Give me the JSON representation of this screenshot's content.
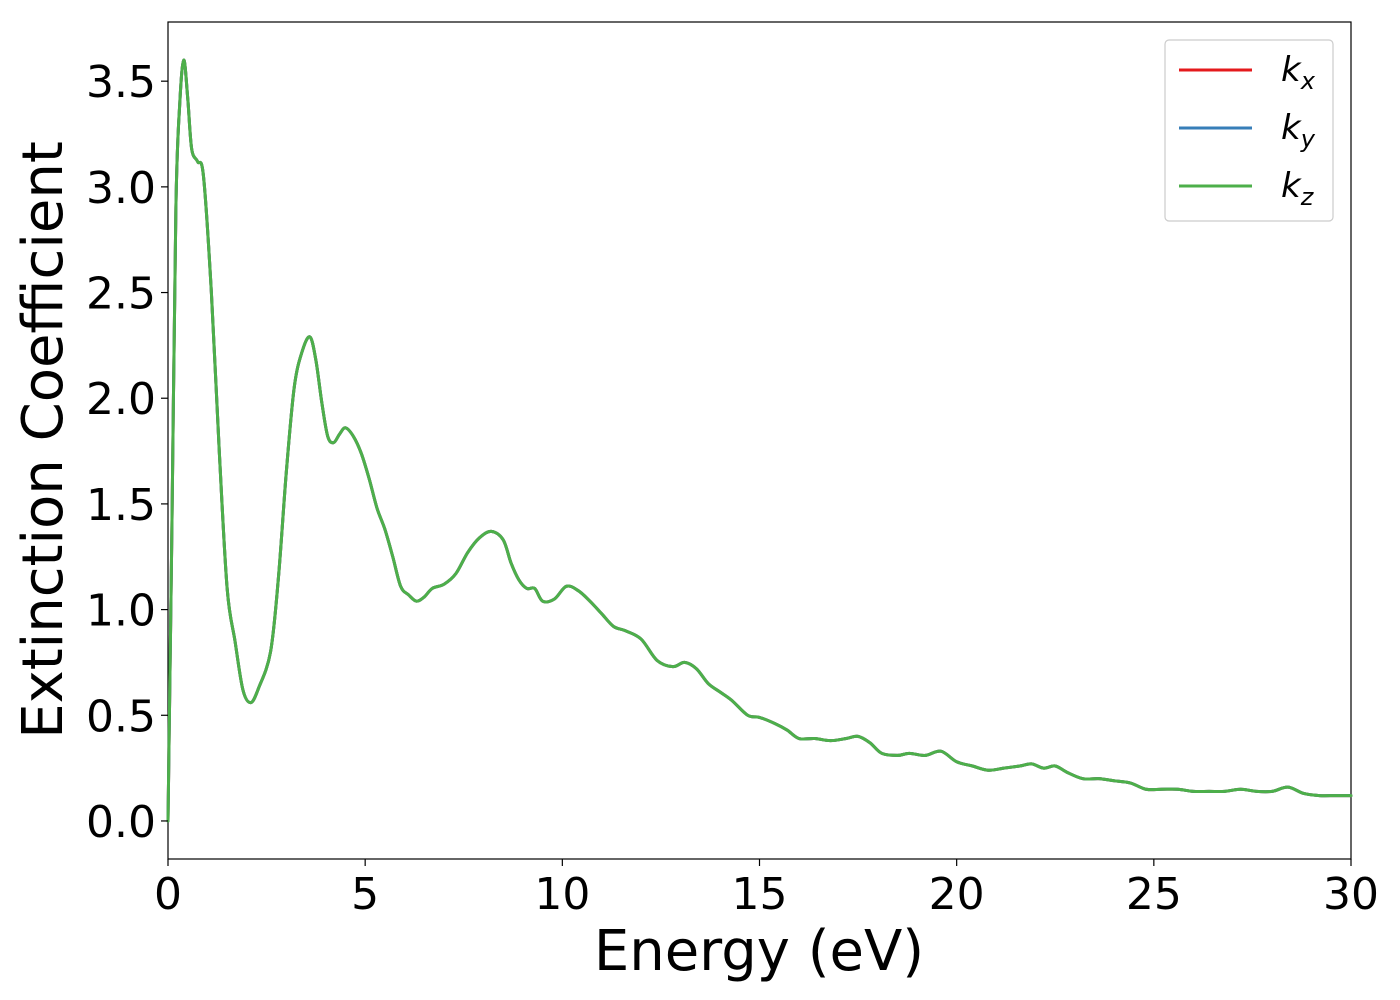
{
  "chart_data": {
    "type": "line",
    "xlabel": "Energy (eV)",
    "ylabel": "Extinction Coefficient",
    "xlim": [
      0,
      30
    ],
    "ylim": [
      -0.18,
      3.78
    ],
    "xticks": [
      0,
      5,
      10,
      15,
      20,
      25,
      30
    ],
    "xtick_labels": [
      "0",
      "5",
      "10",
      "15",
      "20",
      "25",
      "30"
    ],
    "yticks": [
      0.0,
      0.5,
      1.0,
      1.5,
      2.0,
      2.5,
      3.0,
      3.5
    ],
    "ytick_labels": [
      "0.0",
      "0.5",
      "1.0",
      "1.5",
      "2.0",
      "2.5",
      "3.0",
      "3.5"
    ],
    "grid": false,
    "legend_position": "top-right",
    "x": [
      0,
      0.1,
      0.2,
      0.3,
      0.4,
      0.5,
      0.6,
      0.75,
      0.9,
      1.1,
      1.3,
      1.5,
      1.7,
      1.9,
      2.1,
      2.3,
      2.6,
      2.8,
      3.0,
      3.2,
      3.4,
      3.6,
      3.75,
      3.9,
      4.05,
      4.2,
      4.35,
      4.5,
      4.7,
      4.9,
      5.1,
      5.3,
      5.5,
      5.7,
      5.9,
      6.1,
      6.3,
      6.5,
      6.7,
      7.0,
      7.3,
      7.6,
      7.9,
      8.2,
      8.5,
      8.7,
      8.9,
      9.1,
      9.3,
      9.5,
      9.8,
      10.1,
      10.4,
      10.7,
      11.0,
      11.3,
      11.6,
      12.0,
      12.4,
      12.8,
      13.1,
      13.4,
      13.7,
      14.0,
      14.3,
      14.7,
      15.0,
      15.4,
      15.7,
      16.0,
      16.4,
      16.8,
      17.2,
      17.5,
      17.8,
      18.1,
      18.5,
      18.8,
      19.2,
      19.6,
      20.0,
      20.4,
      20.8,
      21.2,
      21.6,
      21.9,
      22.2,
      22.5,
      22.8,
      23.2,
      23.6,
      24.0,
      24.4,
      24.8,
      25.2,
      25.6,
      26.0,
      26.4,
      26.8,
      27.2,
      27.6,
      28.0,
      28.4,
      28.8,
      29.2,
      29.6,
      30.0
    ],
    "series": [
      {
        "name": "k_x",
        "color": "#e41a1c",
        "values": [
          0.0,
          1.4,
          2.9,
          3.4,
          3.6,
          3.42,
          3.18,
          3.12,
          3.05,
          2.5,
          1.75,
          1.1,
          0.85,
          0.62,
          0.56,
          0.63,
          0.8,
          1.15,
          1.65,
          2.05,
          2.22,
          2.29,
          2.18,
          1.98,
          1.82,
          1.79,
          1.83,
          1.86,
          1.82,
          1.74,
          1.62,
          1.48,
          1.38,
          1.25,
          1.11,
          1.07,
          1.04,
          1.06,
          1.1,
          1.12,
          1.17,
          1.27,
          1.34,
          1.37,
          1.33,
          1.22,
          1.14,
          1.1,
          1.1,
          1.04,
          1.05,
          1.11,
          1.09,
          1.04,
          0.98,
          0.92,
          0.9,
          0.86,
          0.76,
          0.73,
          0.75,
          0.72,
          0.65,
          0.61,
          0.57,
          0.5,
          0.49,
          0.46,
          0.43,
          0.39,
          0.39,
          0.38,
          0.39,
          0.4,
          0.37,
          0.32,
          0.31,
          0.32,
          0.31,
          0.33,
          0.28,
          0.26,
          0.24,
          0.25,
          0.26,
          0.27,
          0.25,
          0.26,
          0.23,
          0.2,
          0.2,
          0.19,
          0.18,
          0.15,
          0.15,
          0.15,
          0.14,
          0.14,
          0.14,
          0.15,
          0.14,
          0.14,
          0.16,
          0.13,
          0.12,
          0.12,
          0.12
        ]
      },
      {
        "name": "k_y",
        "color": "#377eb8",
        "values": [
          0.0,
          1.4,
          2.9,
          3.4,
          3.6,
          3.42,
          3.18,
          3.12,
          3.05,
          2.5,
          1.75,
          1.1,
          0.85,
          0.62,
          0.56,
          0.63,
          0.8,
          1.15,
          1.65,
          2.05,
          2.22,
          2.29,
          2.18,
          1.98,
          1.82,
          1.79,
          1.83,
          1.86,
          1.82,
          1.74,
          1.62,
          1.48,
          1.38,
          1.25,
          1.11,
          1.07,
          1.04,
          1.06,
          1.1,
          1.12,
          1.17,
          1.27,
          1.34,
          1.37,
          1.33,
          1.22,
          1.14,
          1.1,
          1.1,
          1.04,
          1.05,
          1.11,
          1.09,
          1.04,
          0.98,
          0.92,
          0.9,
          0.86,
          0.76,
          0.73,
          0.75,
          0.72,
          0.65,
          0.61,
          0.57,
          0.5,
          0.49,
          0.46,
          0.43,
          0.39,
          0.39,
          0.38,
          0.39,
          0.4,
          0.37,
          0.32,
          0.31,
          0.32,
          0.31,
          0.33,
          0.28,
          0.26,
          0.24,
          0.25,
          0.26,
          0.27,
          0.25,
          0.26,
          0.23,
          0.2,
          0.2,
          0.19,
          0.18,
          0.15,
          0.15,
          0.15,
          0.14,
          0.14,
          0.14,
          0.15,
          0.14,
          0.14,
          0.16,
          0.13,
          0.12,
          0.12,
          0.12
        ]
      },
      {
        "name": "k_z",
        "color": "#4daf4a",
        "values": [
          0.0,
          1.4,
          2.9,
          3.4,
          3.6,
          3.42,
          3.18,
          3.12,
          3.05,
          2.5,
          1.75,
          1.1,
          0.85,
          0.62,
          0.56,
          0.63,
          0.8,
          1.15,
          1.65,
          2.05,
          2.22,
          2.29,
          2.18,
          1.98,
          1.82,
          1.79,
          1.83,
          1.86,
          1.82,
          1.74,
          1.62,
          1.48,
          1.38,
          1.25,
          1.11,
          1.07,
          1.04,
          1.06,
          1.1,
          1.12,
          1.17,
          1.27,
          1.34,
          1.37,
          1.33,
          1.22,
          1.14,
          1.1,
          1.1,
          1.04,
          1.05,
          1.11,
          1.09,
          1.04,
          0.98,
          0.92,
          0.9,
          0.86,
          0.76,
          0.73,
          0.75,
          0.72,
          0.65,
          0.61,
          0.57,
          0.5,
          0.49,
          0.46,
          0.43,
          0.39,
          0.39,
          0.38,
          0.39,
          0.4,
          0.37,
          0.32,
          0.31,
          0.32,
          0.31,
          0.33,
          0.28,
          0.26,
          0.24,
          0.25,
          0.26,
          0.27,
          0.25,
          0.26,
          0.23,
          0.2,
          0.2,
          0.19,
          0.18,
          0.15,
          0.15,
          0.15,
          0.14,
          0.14,
          0.14,
          0.15,
          0.14,
          0.14,
          0.16,
          0.13,
          0.12,
          0.12,
          0.12
        ]
      }
    ],
    "legend": [
      {
        "base": "k",
        "sub": "x",
        "color": "#e41a1c"
      },
      {
        "base": "k",
        "sub": "y",
        "color": "#377eb8"
      },
      {
        "base": "k",
        "sub": "z",
        "color": "#4daf4a"
      }
    ]
  }
}
